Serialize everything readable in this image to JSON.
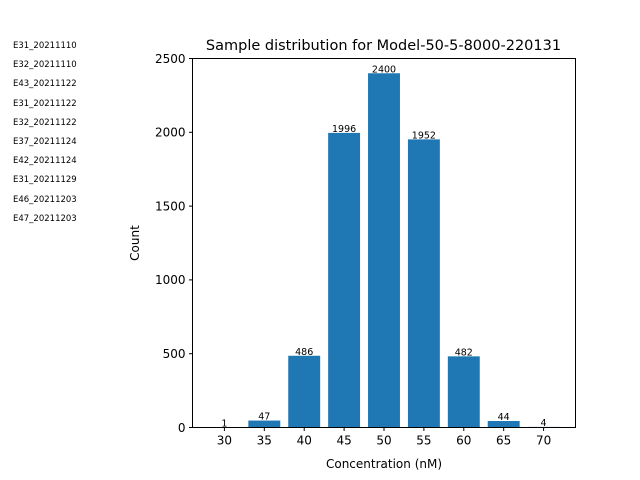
{
  "sidebar": {
    "items": [
      "E31_20211110",
      "E32_20211110",
      "E43_20211122",
      "E31_20211122",
      "E32_20211122",
      "E37_20211124",
      "E42_20211124",
      "E31_20211129",
      "E46_20211203",
      "E47_20211203"
    ]
  },
  "chart_data": {
    "type": "bar",
    "title": "Sample distribution for Model-50-5-8000-220131",
    "xlabel": "Concentration (nM)",
    "ylabel": "Count",
    "categories": [
      30,
      35,
      40,
      45,
      50,
      55,
      60,
      65,
      70
    ],
    "values": [
      1,
      47,
      486,
      1996,
      2400,
      1952,
      482,
      44,
      4
    ],
    "data_labels": [
      "1",
      "47",
      "486",
      "1996",
      "2400",
      "1952",
      "482",
      "44",
      "4"
    ],
    "xticks": [
      "30",
      "35",
      "40",
      "45",
      "50",
      "55",
      "60",
      "65",
      "70"
    ],
    "yticks": [
      0,
      500,
      1000,
      1500,
      2000,
      2500
    ],
    "ytick_labels": [
      "0",
      "500",
      "1000",
      "1500",
      "2000",
      "2500"
    ],
    "xlim": [
      26,
      74
    ],
    "ylim": [
      0,
      2500
    ],
    "bar_color": "#1f77b4",
    "grid": false
  }
}
